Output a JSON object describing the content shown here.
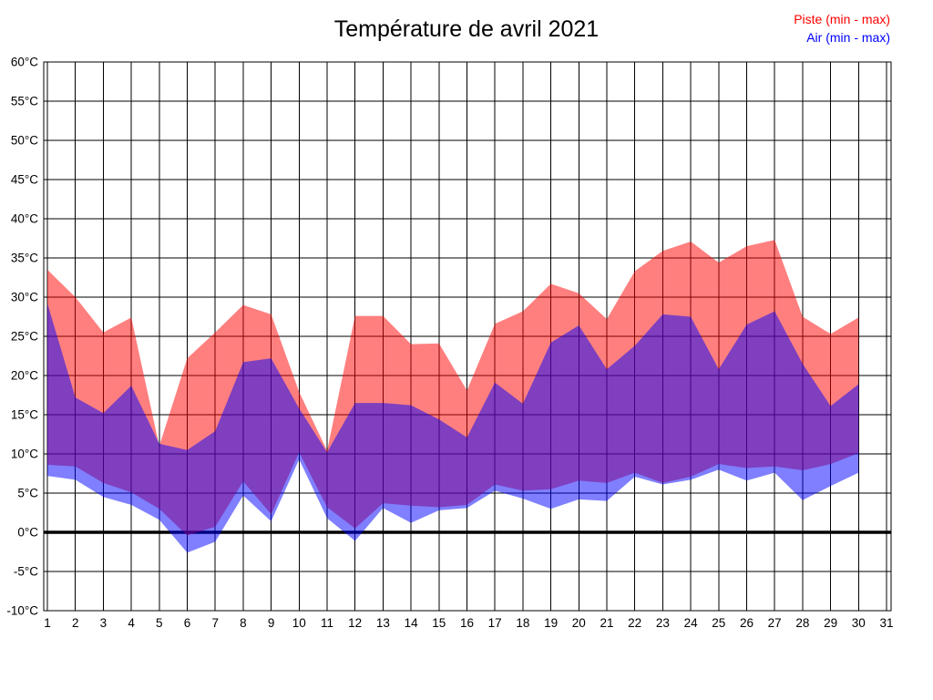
{
  "chart_title": "Température de avril 2021",
  "legend": {
    "piste_label": "Piste (min - max)",
    "air_label": "Air (min - max)"
  },
  "colors": {
    "piste": "#ff0000",
    "air": "#0000ff",
    "grid": "#000000",
    "zero_line": "#000000",
    "axis_text": "#000000",
    "background": "#ffffff"
  },
  "chart_data": {
    "type": "area",
    "title": "Température de avril 2021",
    "xlabel": "",
    "ylabel": "",
    "grid": true,
    "legend_position": "top-right",
    "xlim": [
      1,
      31
    ],
    "ylim": [
      -10,
      60
    ],
    "x_ticks": [
      1,
      2,
      3,
      4,
      5,
      6,
      7,
      8,
      9,
      10,
      11,
      12,
      13,
      14,
      15,
      16,
      17,
      18,
      19,
      20,
      21,
      22,
      23,
      24,
      25,
      26,
      27,
      28,
      29,
      30,
      31
    ],
    "y_ticks": [
      60,
      55,
      50,
      45,
      40,
      35,
      30,
      25,
      20,
      15,
      10,
      5,
      0,
      -5,
      -10
    ],
    "y_tick_suffix": "°C",
    "zero_line_at": 0,
    "days": [
      1,
      2,
      3,
      4,
      5,
      6,
      7,
      8,
      9,
      10,
      11,
      12,
      13,
      14,
      15,
      16,
      17,
      18,
      19,
      20,
      21,
      22,
      23,
      24,
      25,
      26,
      27,
      28,
      29,
      30
    ],
    "series": [
      {
        "name": "Piste (min - max)",
        "color": "#ff0000",
        "fill_opacity": 0.5,
        "max": [
          33.5,
          30.0,
          25.5,
          27.4,
          11.0,
          22.2,
          25.5,
          29.0,
          27.8,
          17.9,
          10.4,
          27.6,
          27.6,
          24.0,
          24.1,
          18.1,
          26.6,
          28.2,
          31.7,
          30.5,
          27.2,
          33.3,
          35.9,
          37.1,
          34.4,
          36.5,
          37.3,
          27.5,
          25.3,
          27.4
        ],
        "min": [
          8.6,
          8.4,
          6.3,
          5.1,
          3.0,
          -0.4,
          0.7,
          6.5,
          2.3,
          10.2,
          3.2,
          0.5,
          3.7,
          3.4,
          3.2,
          3.5,
          6.1,
          5.3,
          5.5,
          6.6,
          6.3,
          7.6,
          6.3,
          7.1,
          8.7,
          8.2,
          8.4,
          7.9,
          8.7,
          10.1
        ]
      },
      {
        "name": "Air (min - max)",
        "color": "#0000ff",
        "fill_opacity": 0.5,
        "max": [
          29.2,
          17.2,
          15.2,
          18.7,
          11.3,
          10.5,
          12.9,
          21.7,
          22.2,
          15.8,
          10.2,
          16.5,
          16.5,
          16.2,
          14.4,
          12.1,
          19.1,
          16.4,
          24.2,
          26.4,
          20.8,
          23.8,
          27.8,
          27.5,
          20.8,
          26.5,
          28.2,
          21.5,
          16.1,
          18.9
        ],
        "min": [
          7.2,
          6.7,
          4.5,
          3.5,
          1.6,
          -2.6,
          -1.2,
          4.7,
          1.4,
          9.3,
          1.8,
          -1.1,
          3.1,
          1.2,
          2.8,
          3.1,
          5.3,
          4.3,
          3.0,
          4.2,
          4.0,
          7.1,
          6.1,
          6.7,
          8.0,
          6.6,
          7.6,
          4.1,
          5.9,
          7.6
        ]
      }
    ]
  }
}
